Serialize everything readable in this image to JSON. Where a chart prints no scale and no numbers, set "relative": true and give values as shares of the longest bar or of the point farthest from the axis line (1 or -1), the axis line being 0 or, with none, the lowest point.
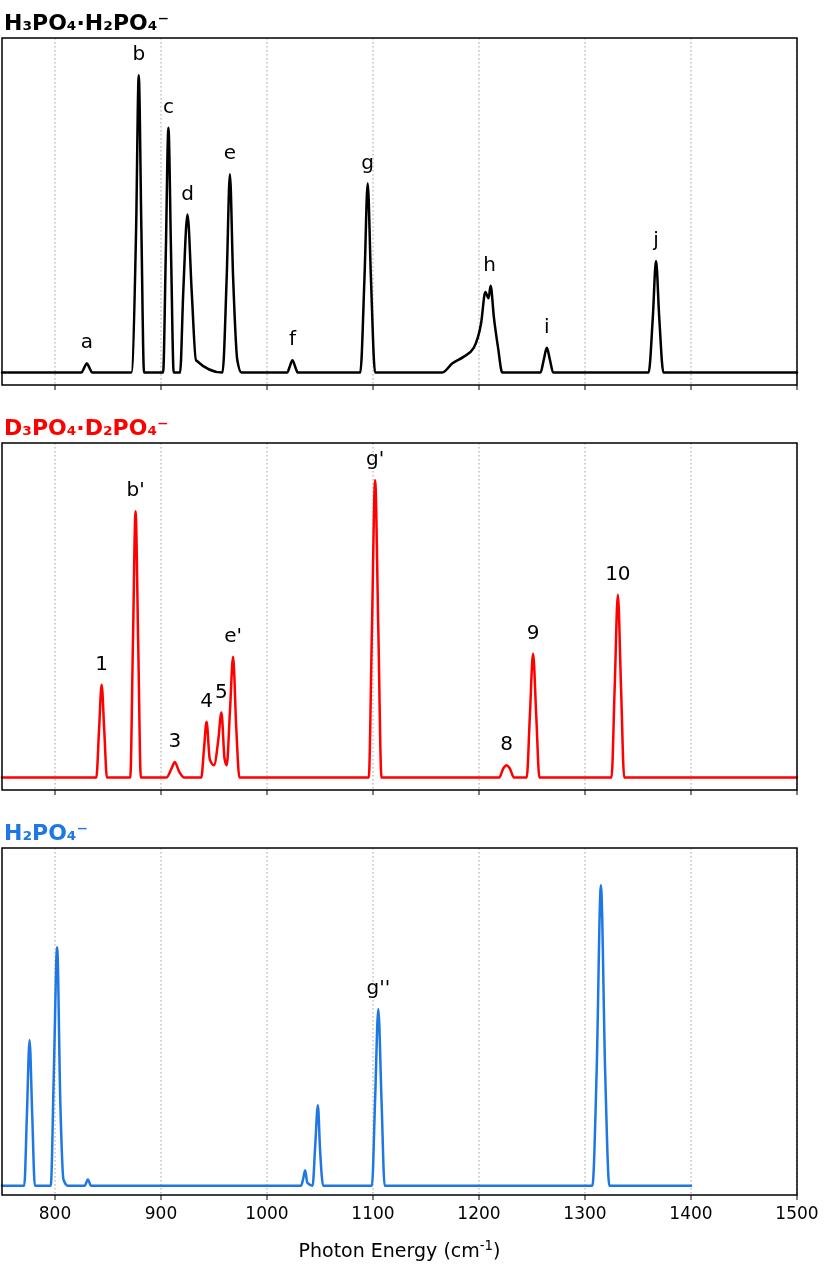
{
  "chart_data": [
    {
      "type": "line",
      "title": "H₃PO₄·H₂PO₄⁻",
      "relative": true,
      "xlim": [
        750,
        1500
      ],
      "xticks": [
        800,
        900,
        1000,
        1100,
        1200,
        1300,
        1400,
        1500
      ],
      "grid": "x",
      "tick_labels": false,
      "marker": "none",
      "line_style": "solid",
      "series": [
        {
          "color": "#000000",
          "x": [
            750,
            825,
            827.5,
            830,
            832.5,
            835,
            872,
            876.5,
            879,
            881.5,
            884,
            902,
            904.5,
            907,
            909.5,
            912,
            918,
            921,
            925,
            929,
            933,
            958,
            962,
            965,
            968,
            972,
            976,
            1019,
            1021.5,
            1024,
            1026.5,
            1029,
            1088,
            1092,
            1095,
            1098,
            1102,
            1165,
            1175,
            1185,
            1195,
            1202,
            1206,
            1209,
            1211,
            1214,
            1218,
            1222,
            1258,
            1261,
            1264,
            1267,
            1270,
            1360,
            1364,
            1367,
            1370,
            1374,
            1500
          ],
          "values": [
            0.04,
            0.04,
            0.055,
            0.07,
            0.055,
            0.04,
            0.04,
            0.5,
            1,
            0.5,
            0.04,
            0.04,
            0.42,
            0.83,
            0.42,
            0.04,
            0.04,
            0.3,
            0.55,
            0.3,
            0.08,
            0.04,
            0.35,
            0.68,
            0.35,
            0.08,
            0.04,
            0.04,
            0.06,
            0.08,
            0.06,
            0.04,
            0.04,
            0.35,
            0.65,
            0.35,
            0.04,
            0.04,
            0.07,
            0.09,
            0.12,
            0.2,
            0.3,
            0.28,
            0.32,
            0.22,
            0.12,
            0.04,
            0.04,
            0.08,
            0.12,
            0.08,
            0.04,
            0.04,
            0.22,
            0.4,
            0.22,
            0.04,
            0.04
          ]
        }
      ],
      "annotations": [
        {
          "text": "a",
          "x": 830,
          "y": 0.07
        },
        {
          "text": "b",
          "x": 879,
          "y": 1
        },
        {
          "text": "c",
          "x": 907,
          "y": 0.83
        },
        {
          "text": "d",
          "x": 925,
          "y": 0.55
        },
        {
          "text": "e",
          "x": 965,
          "y": 0.68
        },
        {
          "text": "f",
          "x": 1024,
          "y": 0.08
        },
        {
          "text": "g",
          "x": 1095,
          "y": 0.65
        },
        {
          "text": "h",
          "x": 1210,
          "y": 0.32
        },
        {
          "text": "i",
          "x": 1264,
          "y": 0.12
        },
        {
          "text": "j",
          "x": 1367,
          "y": 0.4
        }
      ]
    },
    {
      "type": "line",
      "title": "D₃PO₄·D₂PO₄⁻",
      "relative": true,
      "xlim": [
        750,
        1500
      ],
      "xticks": [
        800,
        900,
        1000,
        1100,
        1200,
        1300,
        1400,
        1500
      ],
      "grid": "x",
      "tick_labels": false,
      "marker": "none",
      "line_style": "solid",
      "series": [
        {
          "color": "#ff0000",
          "x": [
            750,
            839,
            841.5,
            844,
            846.5,
            849,
            871,
            873.5,
            876,
            878.5,
            881,
            905,
            910,
            913,
            917,
            922,
            938,
            940.5,
            943,
            946,
            950,
            954,
            957,
            960,
            962,
            965,
            968,
            971,
            974,
            1096,
            1099,
            1102,
            1105,
            1108,
            1219,
            1223,
            1226,
            1229,
            1233,
            1245,
            1248,
            1251,
            1254,
            1257,
            1325,
            1328,
            1331,
            1334,
            1337,
            1500
          ],
          "values": [
            0.04,
            0.04,
            0.19,
            0.34,
            0.19,
            0.04,
            0.04,
            0.47,
            0.9,
            0.47,
            0.04,
            0.04,
            0.07,
            0.09,
            0.06,
            0.04,
            0.04,
            0.13,
            0.22,
            0.1,
            0.08,
            0.16,
            0.25,
            0.1,
            0.08,
            0.25,
            0.43,
            0.2,
            0.04,
            0.04,
            0.52,
            1,
            0.52,
            0.04,
            0.04,
            0.07,
            0.08,
            0.07,
            0.04,
            0.04,
            0.24,
            0.44,
            0.24,
            0.04,
            0.04,
            0.33,
            0.63,
            0.33,
            0.04,
            0.04
          ]
        }
      ],
      "annotations": [
        {
          "text": "1",
          "x": 844,
          "y": 0.34
        },
        {
          "text": "b'",
          "x": 876,
          "y": 0.9
        },
        {
          "text": "3",
          "x": 913,
          "y": 0.09
        },
        {
          "text": "4",
          "x": 943,
          "y": 0.22
        },
        {
          "text": "5",
          "x": 957,
          "y": 0.25
        },
        {
          "text": "e'",
          "x": 968,
          "y": 0.43
        },
        {
          "text": "g'",
          "x": 1102,
          "y": 1
        },
        {
          "text": "8",
          "x": 1226,
          "y": 0.08
        },
        {
          "text": "9",
          "x": 1251,
          "y": 0.44
        },
        {
          "text": "10",
          "x": 1331,
          "y": 0.63
        }
      ]
    },
    {
      "type": "line",
      "title": "H₂PO₄⁻",
      "xlabel": "Photon Energy (cm$^{-1}$)",
      "relative": true,
      "xlim": [
        750,
        1500
      ],
      "xticks": [
        800,
        900,
        1000,
        1100,
        1200,
        1300,
        1400,
        1500
      ],
      "grid": "x",
      "tick_labels": "x",
      "marker": "none",
      "line_style": "solid",
      "series": [
        {
          "color": "#1f77e4",
          "x": [
            750,
            771,
            773.5,
            776,
            778.5,
            781,
            796,
            799,
            802,
            805,
            808,
            812,
            828,
            831,
            834,
            1032,
            1034,
            1036,
            1038,
            1043,
            1045.5,
            1048,
            1050,
            1053,
            1099,
            1102,
            1105,
            1108,
            1111,
            1307,
            1311,
            1315,
            1319,
            1323,
            1400
          ],
          "values": [
            0.03,
            0.03,
            0.26,
            0.5,
            0.26,
            0.03,
            0.03,
            0.41,
            0.8,
            0.3,
            0.05,
            0.03,
            0.03,
            0.05,
            0.03,
            0.03,
            0.05,
            0.08,
            0.04,
            0.03,
            0.16,
            0.29,
            0.15,
            0.03,
            0.03,
            0.31,
            0.6,
            0.31,
            0.03,
            0.03,
            0.4,
            1,
            0.4,
            0.03,
            0.03
          ]
        }
      ],
      "annotations": [
        {
          "text": "g''",
          "x": 1105,
          "y": 0.6
        }
      ]
    }
  ]
}
